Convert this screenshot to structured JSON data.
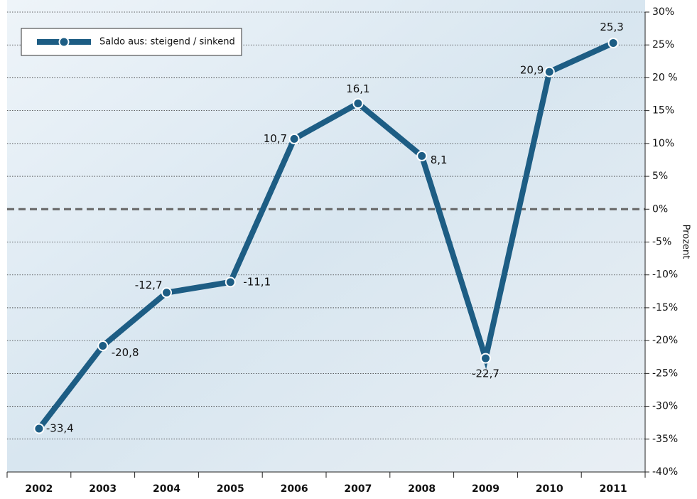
{
  "chart_data": {
    "type": "line",
    "categories": [
      "2002",
      "2003",
      "2004",
      "2005",
      "2006",
      "2007",
      "2008",
      "2009",
      "2010",
      "2011"
    ],
    "series": [
      {
        "name": "Saldo aus: steigend / sinkend",
        "color": "#1d5d84",
        "values": [
          -33.4,
          -20.8,
          -12.7,
          -11.1,
          10.7,
          16.1,
          8.1,
          -22.7,
          20.9,
          25.3
        ],
        "value_labels": [
          "-33,4",
          "-20,8",
          "-12,7",
          "-11,1",
          "10,7",
          "16,1",
          "8,1",
          "-22,7",
          "20,9",
          "25,3"
        ]
      }
    ],
    "y_label": "Prozent",
    "ylim": [
      -40,
      30
    ],
    "yticks": [
      {
        "value": 30,
        "label": "30%"
      },
      {
        "value": 25,
        "label": "25%"
      },
      {
        "value": 20,
        "label": "20 %"
      },
      {
        "value": 15,
        "label": "15%"
      },
      {
        "value": 10,
        "label": "10%"
      },
      {
        "value": 5,
        "label": "5%"
      },
      {
        "value": 0,
        "label": "0%"
      },
      {
        "value": -5,
        "label": "-5%"
      },
      {
        "value": -10,
        "label": "-10%"
      },
      {
        "value": -15,
        "label": "-15%"
      },
      {
        "value": -20,
        "label": "-20%"
      },
      {
        "value": -25,
        "label": "-25%"
      },
      {
        "value": -30,
        "label": "-30%"
      },
      {
        "value": -35,
        "label": "-35%"
      },
      {
        "value": -40,
        "label": "-40%"
      }
    ],
    "grid": true,
    "legend": "top-left"
  }
}
